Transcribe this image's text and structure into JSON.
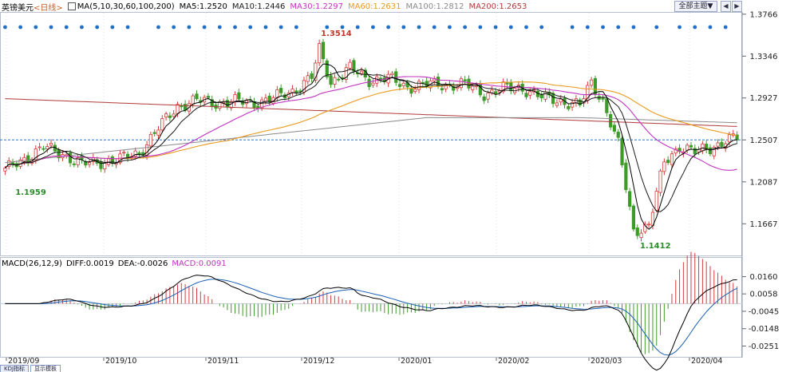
{
  "header": {
    "symbol": "英镑美元",
    "period": "<日线>",
    "ma_label": "MA(5,10,30,60,100,200)",
    "ma5": "MA5:1.2520",
    "ma10": "MA10:1.2446",
    "ma30": "MA30:1.2297",
    "ma60": "MA60:1.2631",
    "ma100": "MA100:1.2812",
    "ma200": "MA200:1.2653",
    "theme_button": "全部主题▼",
    "prev_glyph": "◀",
    "next_glyph": "▶"
  },
  "macd_header": {
    "label": "MACD(26,12,9)",
    "diff": "DIFF:0.0019",
    "dea": "DEA:-0.0026",
    "macd": "MACD:0.0091"
  },
  "tabs": [
    "KDJ指标",
    "显示模板"
  ],
  "annotations": {
    "high": "1.3514",
    "low1": "1.1959",
    "low2": "1.1412"
  },
  "colors": {
    "up": "#d23c3c",
    "down": "#3f9a2a",
    "ma5": "#000000",
    "ma10": "#1a1a1a",
    "ma30": "#c233c2",
    "ma60": "#e89a1d",
    "ma100": "#8a8a8a",
    "ma200": "#b03a3a",
    "diff": "#000000",
    "dea": "#1a5fb4",
    "grid": "#d9dde6",
    "dots": "#1f6fc9"
  },
  "chart_data": [
    {
      "type": "candlestick",
      "title": "英镑美元<日线>",
      "y_ticks": [
        "1.3766",
        "1.3346",
        "1.2927",
        "1.2507",
        "1.2087",
        "1.1667"
      ],
      "ylim": [
        1.135,
        1.378
      ],
      "x_ticks": [
        "2019/09",
        "2019/10",
        "2019/11",
        "2019/12",
        "2020/01",
        "2020/02",
        "2020/03",
        "2020/04"
      ],
      "last_price": 1.2507,
      "high_label": "1.3514",
      "low_labels": [
        "1.1959",
        "1.1412"
      ],
      "close_anchors": [
        [
          0,
          1.22
        ],
        [
          5,
          1.232
        ],
        [
          10,
          1.243
        ],
        [
          15,
          1.237
        ],
        [
          20,
          1.226
        ],
        [
          25,
          1.229
        ],
        [
          30,
          1.231
        ],
        [
          35,
          1.238
        ],
        [
          40,
          1.262
        ],
        [
          45,
          1.285
        ],
        [
          50,
          1.29
        ],
        [
          55,
          1.288
        ],
        [
          60,
          1.289
        ],
        [
          65,
          1.288
        ],
        [
          70,
          1.292
        ],
        [
          75,
          1.3
        ],
        [
          80,
          1.313
        ],
        [
          82,
          1.341
        ],
        [
          85,
          1.309
        ],
        [
          90,
          1.322
        ],
        [
          95,
          1.311
        ],
        [
          100,
          1.312
        ],
        [
          105,
          1.304
        ],
        [
          110,
          1.306
        ],
        [
          115,
          1.306
        ],
        [
          120,
          1.306
        ],
        [
          125,
          1.297
        ],
        [
          130,
          1.302
        ],
        [
          135,
          1.303
        ],
        [
          140,
          1.293
        ],
        [
          145,
          1.29
        ],
        [
          150,
          1.285
        ],
        [
          153,
          1.308
        ],
        [
          156,
          1.29
        ],
        [
          160,
          1.246
        ],
        [
          164,
          1.16
        ],
        [
          168,
          1.165
        ],
        [
          172,
          1.228
        ],
        [
          176,
          1.245
        ],
        [
          180,
          1.238
        ],
        [
          184,
          1.243
        ],
        [
          188,
          1.25
        ],
        [
          191,
          1.252
        ]
      ],
      "series": [
        {
          "name": "MA5",
          "color": "#000000"
        },
        {
          "name": "MA10",
          "color": "#1a1a1a"
        },
        {
          "name": "MA30",
          "color": "#c233c2"
        },
        {
          "name": "MA60",
          "color": "#e89a1d"
        },
        {
          "name": "MA100",
          "color": "#8a8a8a"
        },
        {
          "name": "MA200",
          "color": "#b03a3a"
        }
      ]
    },
    {
      "type": "macd",
      "title": "MACD(26,12,9)",
      "y_ticks": [
        "0.0160",
        "0.0058",
        "-0.0045",
        "-0.0148",
        "-0.0251"
      ],
      "ylim": [
        -0.031,
        0.021
      ],
      "diff_last": 0.0019,
      "dea_last": -0.0026,
      "macd_last": 0.0091
    }
  ]
}
